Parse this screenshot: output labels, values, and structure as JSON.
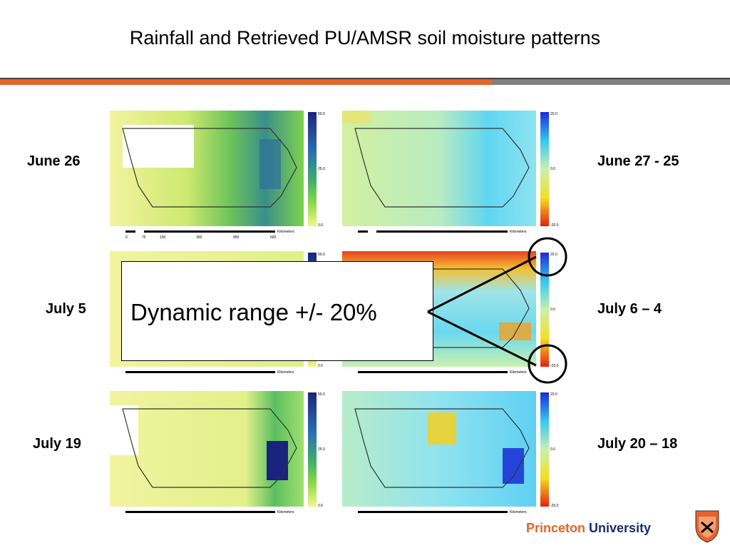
{
  "slide": {
    "title": "Rainfall and Retrieved PU/AMSR soil moisture patterns",
    "callout": "Dynamic range +/- 20%",
    "logo_princeton": "Princeton",
    "logo_university": "University"
  },
  "rows": [
    {
      "left_label": "June 26",
      "right_label": "June 27 -  25"
    },
    {
      "left_label": "July 5",
      "right_label": "July 6 – 4"
    },
    {
      "left_label": "July 19",
      "right_label": "July 20 – 18"
    }
  ],
  "rain_colorbar": {
    "max": "50.0",
    "mid": "25.0",
    "min": "0.0"
  },
  "sm_colorbar": {
    "max": "20.0",
    "mid": "0.0",
    "min": "-20.0"
  },
  "scalebar": {
    "ticks": [
      "0",
      "75",
      "150",
      "300",
      "450",
      "600"
    ],
    "unit": "Kilometers"
  },
  "colors": {
    "accent_orange": "#e8632a",
    "rule_gray": "#808080",
    "princeton_blue": "#1a2a6c"
  }
}
